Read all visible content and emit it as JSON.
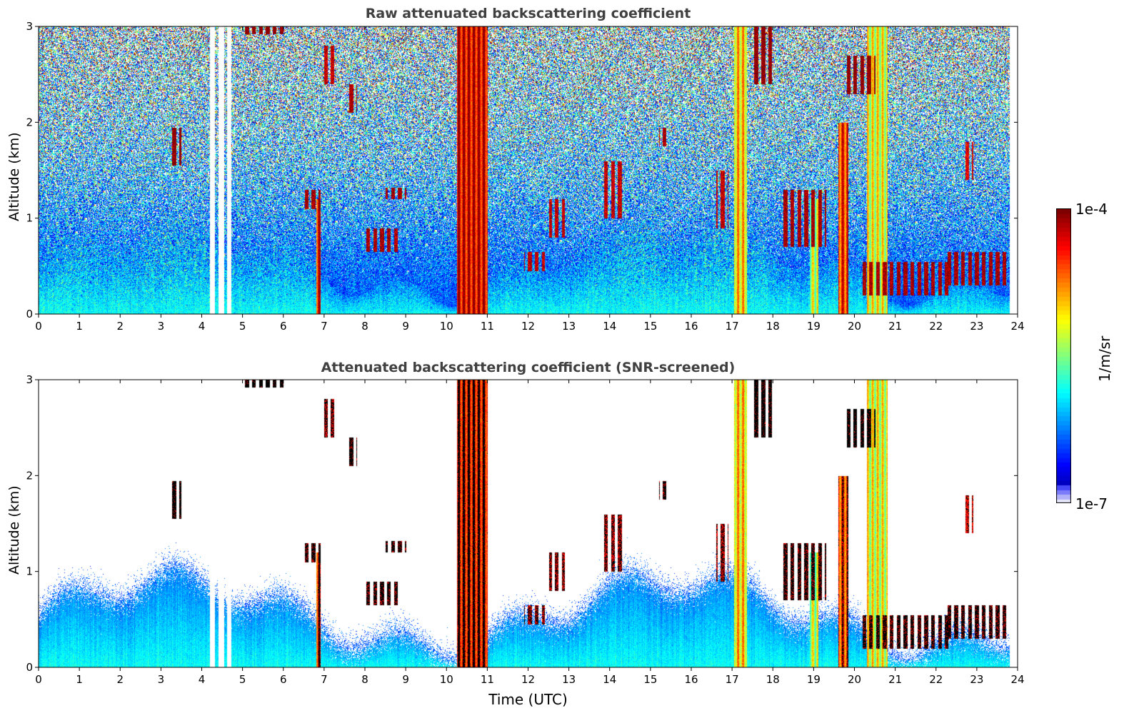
{
  "chart_data": {
    "type": "heatmap",
    "panels": [
      {
        "title": "Raw attenuated backscattering coefficient",
        "ylabel": "Altitude (km)",
        "xlabel": "",
        "screened": false
      },
      {
        "title": "Attenuated backscattering coefficient (SNR-screened)",
        "ylabel": "Altitude (km)",
        "xlabel": "Time (UTC)",
        "screened": true
      }
    ],
    "xlim": [
      0,
      24
    ],
    "ylim": [
      0,
      3
    ],
    "xticks": [
      "0",
      "1",
      "2",
      "3",
      "4",
      "5",
      "6",
      "7",
      "8",
      "9",
      "10",
      "11",
      "12",
      "13",
      "14",
      "15",
      "16",
      "17",
      "18",
      "19",
      "20",
      "21",
      "22",
      "23",
      "24"
    ],
    "yticks": [
      "0",
      "1",
      "2",
      "3"
    ],
    "data_end_time": 23.8,
    "missing_intervals": [
      [
        4.19,
        4.31
      ],
      [
        4.4,
        4.54
      ],
      [
        4.61,
        4.72
      ]
    ],
    "colorbar": {
      "label": "1/m/sr",
      "min_label": "1e-7",
      "max_label": "1e-4",
      "log_min": -7,
      "log_max": -4,
      "scale": "log",
      "colormap": "jet"
    },
    "cloud_layers": [
      {
        "t": [
          3.25,
          3.5
        ],
        "z": [
          1.55,
          1.95
        ],
        "log_beta": -4.0
      },
      {
        "t": [
          6.45,
          6.9
        ],
        "z": [
          1.1,
          1.3
        ],
        "log_beta": -4.1
      },
      {
        "t": [
          7.55,
          7.8
        ],
        "z": [
          2.1,
          2.4
        ],
        "log_beta": -4.1
      },
      {
        "t": [
          7.0,
          7.3
        ],
        "z": [
          2.4,
          2.8
        ],
        "log_beta": -4.2
      },
      {
        "t": [
          8.0,
          8.8
        ],
        "z": [
          0.65,
          0.9
        ],
        "log_beta": -4.1
      },
      {
        "t": [
          8.5,
          9.0
        ],
        "z": [
          1.2,
          1.32
        ],
        "log_beta": -4.1
      },
      {
        "t": [
          5.0,
          6.0
        ],
        "z": [
          2.92,
          3.0
        ],
        "log_beta": -4.0
      },
      {
        "t": [
          11.9,
          12.4
        ],
        "z": [
          0.45,
          0.65
        ],
        "log_beta": -4.2
      },
      {
        "t": [
          12.5,
          12.9
        ],
        "z": [
          0.8,
          1.2
        ],
        "log_beta": -4.2
      },
      {
        "t": [
          13.8,
          14.3
        ],
        "z": [
          1.0,
          1.6
        ],
        "log_beta": -4.2
      },
      {
        "t": [
          15.2,
          15.4
        ],
        "z": [
          1.75,
          1.95
        ],
        "log_beta": -4.1
      },
      {
        "t": [
          16.6,
          16.9
        ],
        "z": [
          0.9,
          1.5
        ],
        "log_beta": -4.2
      },
      {
        "t": [
          17.5,
          18.0
        ],
        "z": [
          2.4,
          3.0
        ],
        "log_beta": -4.0
      },
      {
        "t": [
          18.2,
          19.3
        ],
        "z": [
          0.7,
          1.3
        ],
        "log_beta": -4.1
      },
      {
        "t": [
          19.8,
          20.5
        ],
        "z": [
          2.3,
          2.7
        ],
        "log_beta": -4.0
      },
      {
        "t": [
          20.2,
          22.3
        ],
        "z": [
          0.2,
          0.55
        ],
        "log_beta": -4.1
      },
      {
        "t": [
          22.2,
          23.8
        ],
        "z": [
          0.3,
          0.65
        ],
        "log_beta": -4.1
      },
      {
        "t": [
          22.7,
          22.9
        ],
        "z": [
          1.4,
          1.8
        ],
        "log_beta": -4.3
      }
    ],
    "precipitation_columns": [
      {
        "t": [
          10.25,
          11.0
        ],
        "ztop": 3.0,
        "log_beta": -4.3
      },
      {
        "t": [
          17.05,
          17.35
        ],
        "ztop": 3.0,
        "log_beta": -5.0
      },
      {
        "t": [
          6.8,
          6.9
        ],
        "ztop": 1.2,
        "log_beta": -4.4
      },
      {
        "t": [
          19.6,
          19.85
        ],
        "ztop": 2.0,
        "log_beta": -4.5
      },
      {
        "t": [
          20.3,
          20.8
        ],
        "ztop": 3.0,
        "log_beta": -5.2
      },
      {
        "t": [
          18.9,
          19.1
        ],
        "ztop": 1.2,
        "log_beta": -5.3
      }
    ]
  }
}
